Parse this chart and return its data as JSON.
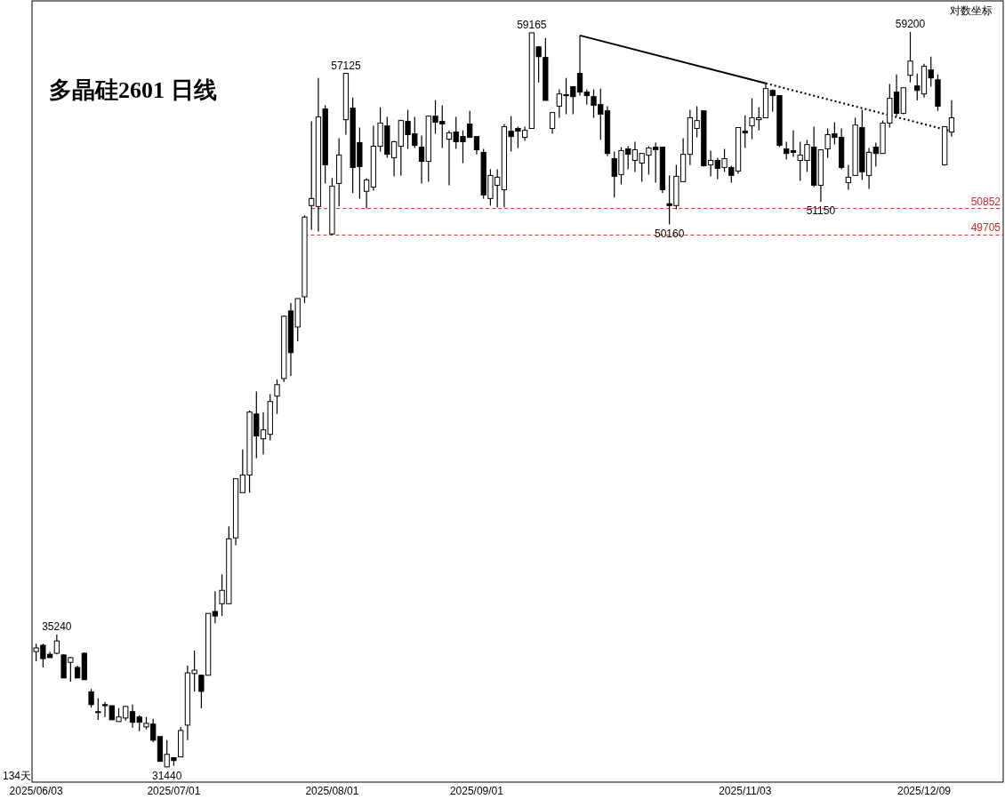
{
  "chart_data": {
    "type": "candlestick",
    "title": "多晶硅2601 日线",
    "log": true,
    "tick_labels": "x",
    "ylim": [
      31040,
      60800
    ],
    "categories": [
      "2025/06/03",
      null,
      null,
      null,
      null,
      null,
      null,
      null,
      null,
      null,
      null,
      null,
      null,
      null,
      null,
      null,
      null,
      null,
      null,
      null,
      "2025/07/01",
      null,
      null,
      null,
      null,
      null,
      null,
      null,
      null,
      null,
      null,
      null,
      null,
      null,
      null,
      null,
      null,
      null,
      null,
      null,
      null,
      null,
      null,
      "2025/08/01",
      null,
      null,
      null,
      null,
      null,
      null,
      null,
      null,
      null,
      null,
      null,
      null,
      null,
      null,
      null,
      null,
      null,
      null,
      null,
      null,
      "2025/09/01",
      null,
      null,
      null,
      null,
      null,
      null,
      null,
      null,
      null,
      null,
      null,
      null,
      null,
      null,
      null,
      null,
      null,
      null,
      null,
      null,
      null,
      null,
      null,
      null,
      null,
      null,
      null,
      null,
      null,
      null,
      null,
      null,
      null,
      null,
      null,
      null,
      null,
      null,
      "2025/11/03",
      null,
      null,
      null,
      null,
      null,
      null,
      null,
      null,
      null,
      null,
      null,
      null,
      null,
      null,
      null,
      null,
      null,
      null,
      null,
      null,
      null,
      null,
      null,
      null,
      null,
      "2025/12/09",
      null,
      null,
      null,
      null
    ],
    "ohlc": [
      [
        34730,
        34970,
        34440,
        34840
      ],
      [
        34920,
        34970,
        34260,
        34520
      ],
      [
        34650,
        34730,
        34550,
        34550
      ],
      [
        34680,
        35240,
        34650,
        35050
      ],
      [
        34630,
        34650,
        33950,
        33950
      ],
      [
        34410,
        34570,
        33840,
        34550
      ],
      [
        34260,
        34310,
        33950,
        33950
      ],
      [
        34680,
        34710,
        33900,
        33900
      ],
      [
        33550,
        33630,
        33100,
        33180
      ],
      [
        32980,
        33360,
        32750,
        32960
      ],
      [
        33180,
        33260,
        32830,
        33150
      ],
      [
        33150,
        33150,
        32750,
        32750
      ],
      [
        32700,
        33080,
        32700,
        32830
      ],
      [
        32800,
        33130,
        32730,
        33130
      ],
      [
        32980,
        33180,
        32530,
        32680
      ],
      [
        32830,
        32880,
        32430,
        32680
      ],
      [
        32550,
        32830,
        32480,
        32650
      ],
      [
        32630,
        32780,
        32130,
        32180
      ],
      [
        32280,
        32280,
        31600,
        31600
      ],
      [
        31450,
        32180,
        31440,
        31790
      ],
      [
        31700,
        31720,
        31480,
        31620
      ],
      [
        31720,
        32550,
        31720,
        32450
      ],
      [
        32600,
        34310,
        32180,
        34100
      ],
      [
        34080,
        34760,
        33560,
        34180
      ],
      [
        34030,
        34050,
        33080,
        33560
      ],
      [
        34030,
        35890,
        34030,
        35890
      ],
      [
        35950,
        36580,
        35590,
        35810
      ],
      [
        36190,
        37120,
        35810,
        36610
      ],
      [
        36190,
        38680,
        36190,
        38270
      ],
      [
        38300,
        40300,
        38060,
        40300
      ],
      [
        39820,
        41330,
        39820,
        40430
      ],
      [
        40430,
        42740,
        39820,
        42680
      ],
      [
        42610,
        43440,
        41020,
        41810
      ],
      [
        41710,
        42680,
        41150,
        42030
      ],
      [
        41870,
        43340,
        41650,
        43070
      ],
      [
        43270,
        43900,
        42610,
        43700
      ],
      [
        43930,
        46380,
        43800,
        46350
      ],
      [
        46560,
        46880,
        44030,
        44920
      ],
      [
        45920,
        47060,
        45360,
        47060
      ],
      [
        47130,
        50550,
        46880,
        50480
      ],
      [
        50980,
        54810,
        49930,
        51290
      ],
      [
        50940,
        56900,
        49850,
        55020
      ],
      [
        55400,
        55570,
        51960,
        52800
      ],
      [
        49750,
        52200,
        49705,
        51840
      ],
      [
        51960,
        54020,
        50940,
        53250
      ],
      [
        54890,
        57125,
        54190,
        57125
      ],
      [
        55440,
        55950,
        51530,
        52680
      ],
      [
        53820,
        54520,
        51290,
        52720
      ],
      [
        51610,
        52200,
        50852,
        52120
      ],
      [
        51800,
        54600,
        51640,
        53650
      ],
      [
        53650,
        55480,
        53410,
        54730
      ],
      [
        54600,
        55020,
        53120,
        53280
      ],
      [
        53120,
        53900,
        52280,
        53860
      ],
      [
        53650,
        54890,
        52320,
        54850
      ],
      [
        54810,
        55360,
        53530,
        54190
      ],
      [
        54230,
        55020,
        53570,
        53690
      ],
      [
        53610,
        54150,
        51960,
        52960
      ],
      [
        52960,
        55060,
        52040,
        55060
      ],
      [
        55060,
        55820,
        54230,
        54770
      ],
      [
        54810,
        55570,
        53570,
        54690
      ],
      [
        53980,
        54390,
        51880,
        54270
      ],
      [
        54310,
        55020,
        53530,
        53860
      ],
      [
        54100,
        54390,
        52880,
        53860
      ],
      [
        54690,
        55310,
        54060,
        54060
      ],
      [
        54100,
        54100,
        53280,
        53490
      ],
      [
        53370,
        53530,
        51290,
        51450
      ],
      [
        51290,
        52600,
        50980,
        52320
      ],
      [
        51880,
        52600,
        50900,
        52240
      ],
      [
        51680,
        54690,
        50900,
        54560
      ],
      [
        54350,
        55060,
        53410,
        54100
      ],
      [
        54480,
        54560,
        53570,
        54350
      ],
      [
        54060,
        54560,
        53900,
        54390
      ],
      [
        54480,
        59165,
        54480,
        59150
      ],
      [
        58440,
        58490,
        56680,
        57950
      ],
      [
        57910,
        58890,
        55810,
        55810
      ],
      [
        54480,
        55230,
        54230,
        55230
      ],
      [
        55530,
        56340,
        54980,
        56120
      ],
      [
        56080,
        56900,
        55150,
        56040
      ],
      [
        56470,
        56470,
        55150,
        55990
      ],
      [
        57120,
        59020,
        56040,
        56210
      ],
      [
        56210,
        56340,
        55610,
        56040
      ],
      [
        55990,
        56340,
        54980,
        55570
      ],
      [
        55610,
        56380,
        53940,
        55150
      ],
      [
        55310,
        55530,
        53200,
        53320
      ],
      [
        53080,
        53410,
        51330,
        52280
      ],
      [
        52360,
        53610,
        51920,
        53450
      ],
      [
        53530,
        53650,
        52600,
        53280
      ],
      [
        53000,
        53860,
        52480,
        53490
      ],
      [
        52880,
        53320,
        52040,
        53320
      ],
      [
        53240,
        53650,
        52360,
        53570
      ],
      [
        53610,
        53820,
        52000,
        53490
      ],
      [
        53610,
        53610,
        51530,
        51680
      ],
      [
        51060,
        52320,
        50160,
        50980
      ],
      [
        50980,
        52800,
        50820,
        52280
      ],
      [
        52040,
        54020,
        52040,
        53280
      ],
      [
        53280,
        55360,
        52800,
        54980
      ],
      [
        54480,
        55530,
        54060,
        54850
      ],
      [
        55310,
        55310,
        52720,
        52760
      ],
      [
        52800,
        53450,
        52280,
        53000
      ],
      [
        53000,
        53120,
        52160,
        52640
      ],
      [
        52680,
        53530,
        52480,
        53080
      ],
      [
        52680,
        52760,
        52000,
        52320
      ],
      [
        52520,
        54520,
        52400,
        54520
      ],
      [
        54350,
        55100,
        53570,
        54270
      ],
      [
        54600,
        55910,
        53980,
        54980
      ],
      [
        54890,
        55480,
        54390,
        54980
      ],
      [
        54980,
        56640,
        54980,
        56380
      ],
      [
        56290,
        56340,
        55270,
        56040
      ],
      [
        56040,
        56040,
        53610,
        53690
      ],
      [
        53530,
        53860,
        53040,
        53320
      ],
      [
        53450,
        54390,
        53160,
        53370
      ],
      [
        53000,
        53860,
        52080,
        53240
      ],
      [
        53000,
        53940,
        52480,
        53730
      ],
      [
        53610,
        54560,
        51800,
        51880
      ],
      [
        51880,
        53490,
        51150,
        53490
      ],
      [
        53530,
        54480,
        53120,
        54190
      ],
      [
        54230,
        54770,
        53730,
        54060
      ],
      [
        54060,
        54480,
        52600,
        52680
      ],
      [
        52000,
        52800,
        51680,
        52240
      ],
      [
        52320,
        54980,
        52320,
        54640
      ],
      [
        54520,
        55360,
        52120,
        52480
      ],
      [
        52320,
        53570,
        51720,
        53370
      ],
      [
        53610,
        53820,
        52720,
        53320
      ],
      [
        53320,
        54850,
        53320,
        54730
      ],
      [
        54730,
        56600,
        54520,
        55910
      ],
      [
        56210,
        57070,
        55060,
        55190
      ],
      [
        55190,
        56420,
        55150,
        56420
      ],
      [
        57030,
        59200,
        56680,
        57730
      ],
      [
        56510,
        57120,
        55810,
        56290
      ],
      [
        56120,
        57600,
        55950,
        57470
      ],
      [
        57290,
        57950,
        56470,
        56900
      ],
      [
        56810,
        57070,
        55310,
        55530
      ],
      [
        52800,
        54560,
        52760,
        54560
      ],
      [
        54310,
        55820,
        54100,
        54980
      ]
    ],
    "value_labels": [
      null,
      null,
      null,
      "35240",
      null,
      null,
      null,
      null,
      null,
      null,
      null,
      null,
      null,
      null,
      null,
      null,
      null,
      null,
      null,
      "31440",
      null,
      null,
      null,
      null,
      null,
      null,
      null,
      null,
      null,
      null,
      null,
      null,
      null,
      null,
      null,
      null,
      null,
      null,
      null,
      null,
      null,
      null,
      null,
      null,
      null,
      "57125",
      null,
      null,
      null,
      null,
      null,
      null,
      null,
      null,
      null,
      null,
      null,
      null,
      null,
      null,
      null,
      null,
      null,
      null,
      null,
      null,
      null,
      null,
      null,
      null,
      null,
      null,
      "59165",
      null,
      null,
      null,
      null,
      null,
      null,
      null,
      null,
      null,
      null,
      null,
      null,
      null,
      null,
      null,
      null,
      null,
      null,
      null,
      "50160",
      null,
      null,
      null,
      null,
      null,
      null,
      null,
      null,
      null,
      null,
      null,
      null,
      null,
      null,
      null,
      null,
      null,
      null,
      null,
      null,
      null,
      "51150",
      null,
      null,
      null,
      null,
      null,
      null,
      null,
      null,
      null,
      null,
      null,
      null,
      "59200",
      null,
      null,
      null,
      null,
      null,
      null
    ],
    "series": [
      {
        "type": "line",
        "color": "#000000",
        "line_style": "solid",
        "values": [
          null,
          null,
          null,
          null,
          null,
          null,
          null,
          null,
          null,
          null,
          null,
          null,
          null,
          null,
          null,
          null,
          null,
          null,
          null,
          null,
          null,
          null,
          null,
          null,
          null,
          null,
          null,
          null,
          null,
          null,
          null,
          null,
          null,
          null,
          null,
          null,
          null,
          null,
          null,
          null,
          null,
          null,
          null,
          null,
          null,
          null,
          null,
          null,
          null,
          null,
          null,
          null,
          null,
          null,
          null,
          null,
          null,
          null,
          null,
          null,
          null,
          null,
          null,
          null,
          null,
          null,
          null,
          null,
          null,
          null,
          null,
          null,
          null,
          null,
          null,
          null,
          null,
          null,
          null,
          59020,
          null,
          null,
          null,
          null,
          null,
          null,
          null,
          null,
          null,
          null,
          null,
          null,
          null,
          null,
          null,
          null,
          null,
          null,
          null,
          null,
          null,
          null,
          null,
          null,
          null,
          null,
          56640,
          null,
          null,
          null,
          null,
          null,
          null,
          null,
          null,
          null,
          null,
          null,
          null,
          null,
          null,
          null,
          null,
          null,
          null,
          null,
          null,
          null,
          null,
          null,
          null,
          null,
          null,
          null
        ]
      },
      {
        "type": "line",
        "color": "#000000",
        "line_style": "dotted",
        "values": [
          null,
          null,
          null,
          null,
          null,
          null,
          null,
          null,
          null,
          null,
          null,
          null,
          null,
          null,
          null,
          null,
          null,
          null,
          null,
          null,
          null,
          null,
          null,
          null,
          null,
          null,
          null,
          null,
          null,
          null,
          null,
          null,
          null,
          null,
          null,
          null,
          null,
          null,
          null,
          null,
          null,
          null,
          null,
          null,
          null,
          null,
          null,
          null,
          null,
          null,
          null,
          null,
          null,
          null,
          null,
          null,
          null,
          null,
          null,
          null,
          null,
          null,
          null,
          null,
          null,
          null,
          null,
          null,
          null,
          null,
          null,
          null,
          null,
          null,
          null,
          null,
          null,
          null,
          null,
          null,
          null,
          null,
          null,
          null,
          null,
          null,
          null,
          null,
          null,
          null,
          null,
          null,
          null,
          null,
          null,
          null,
          null,
          null,
          null,
          null,
          null,
          null,
          null,
          null,
          null,
          null,
          56640,
          null,
          null,
          null,
          null,
          null,
          null,
          null,
          null,
          null,
          null,
          null,
          null,
          null,
          null,
          null,
          null,
          null,
          null,
          null,
          null,
          null,
          null,
          null,
          null,
          null,
          null,
          54350
        ]
      }
    ],
    "ref_lines": [
      {
        "axis": "y",
        "value": 50852,
        "label": "50852",
        "color": "#e0202a",
        "line_style": "dashed"
      },
      {
        "axis": "y",
        "value": 49705,
        "label": "49705",
        "color": "#e0202a",
        "line_style": "dashed"
      }
    ],
    "annotations": [
      "134天",
      "对数坐标"
    ]
  }
}
